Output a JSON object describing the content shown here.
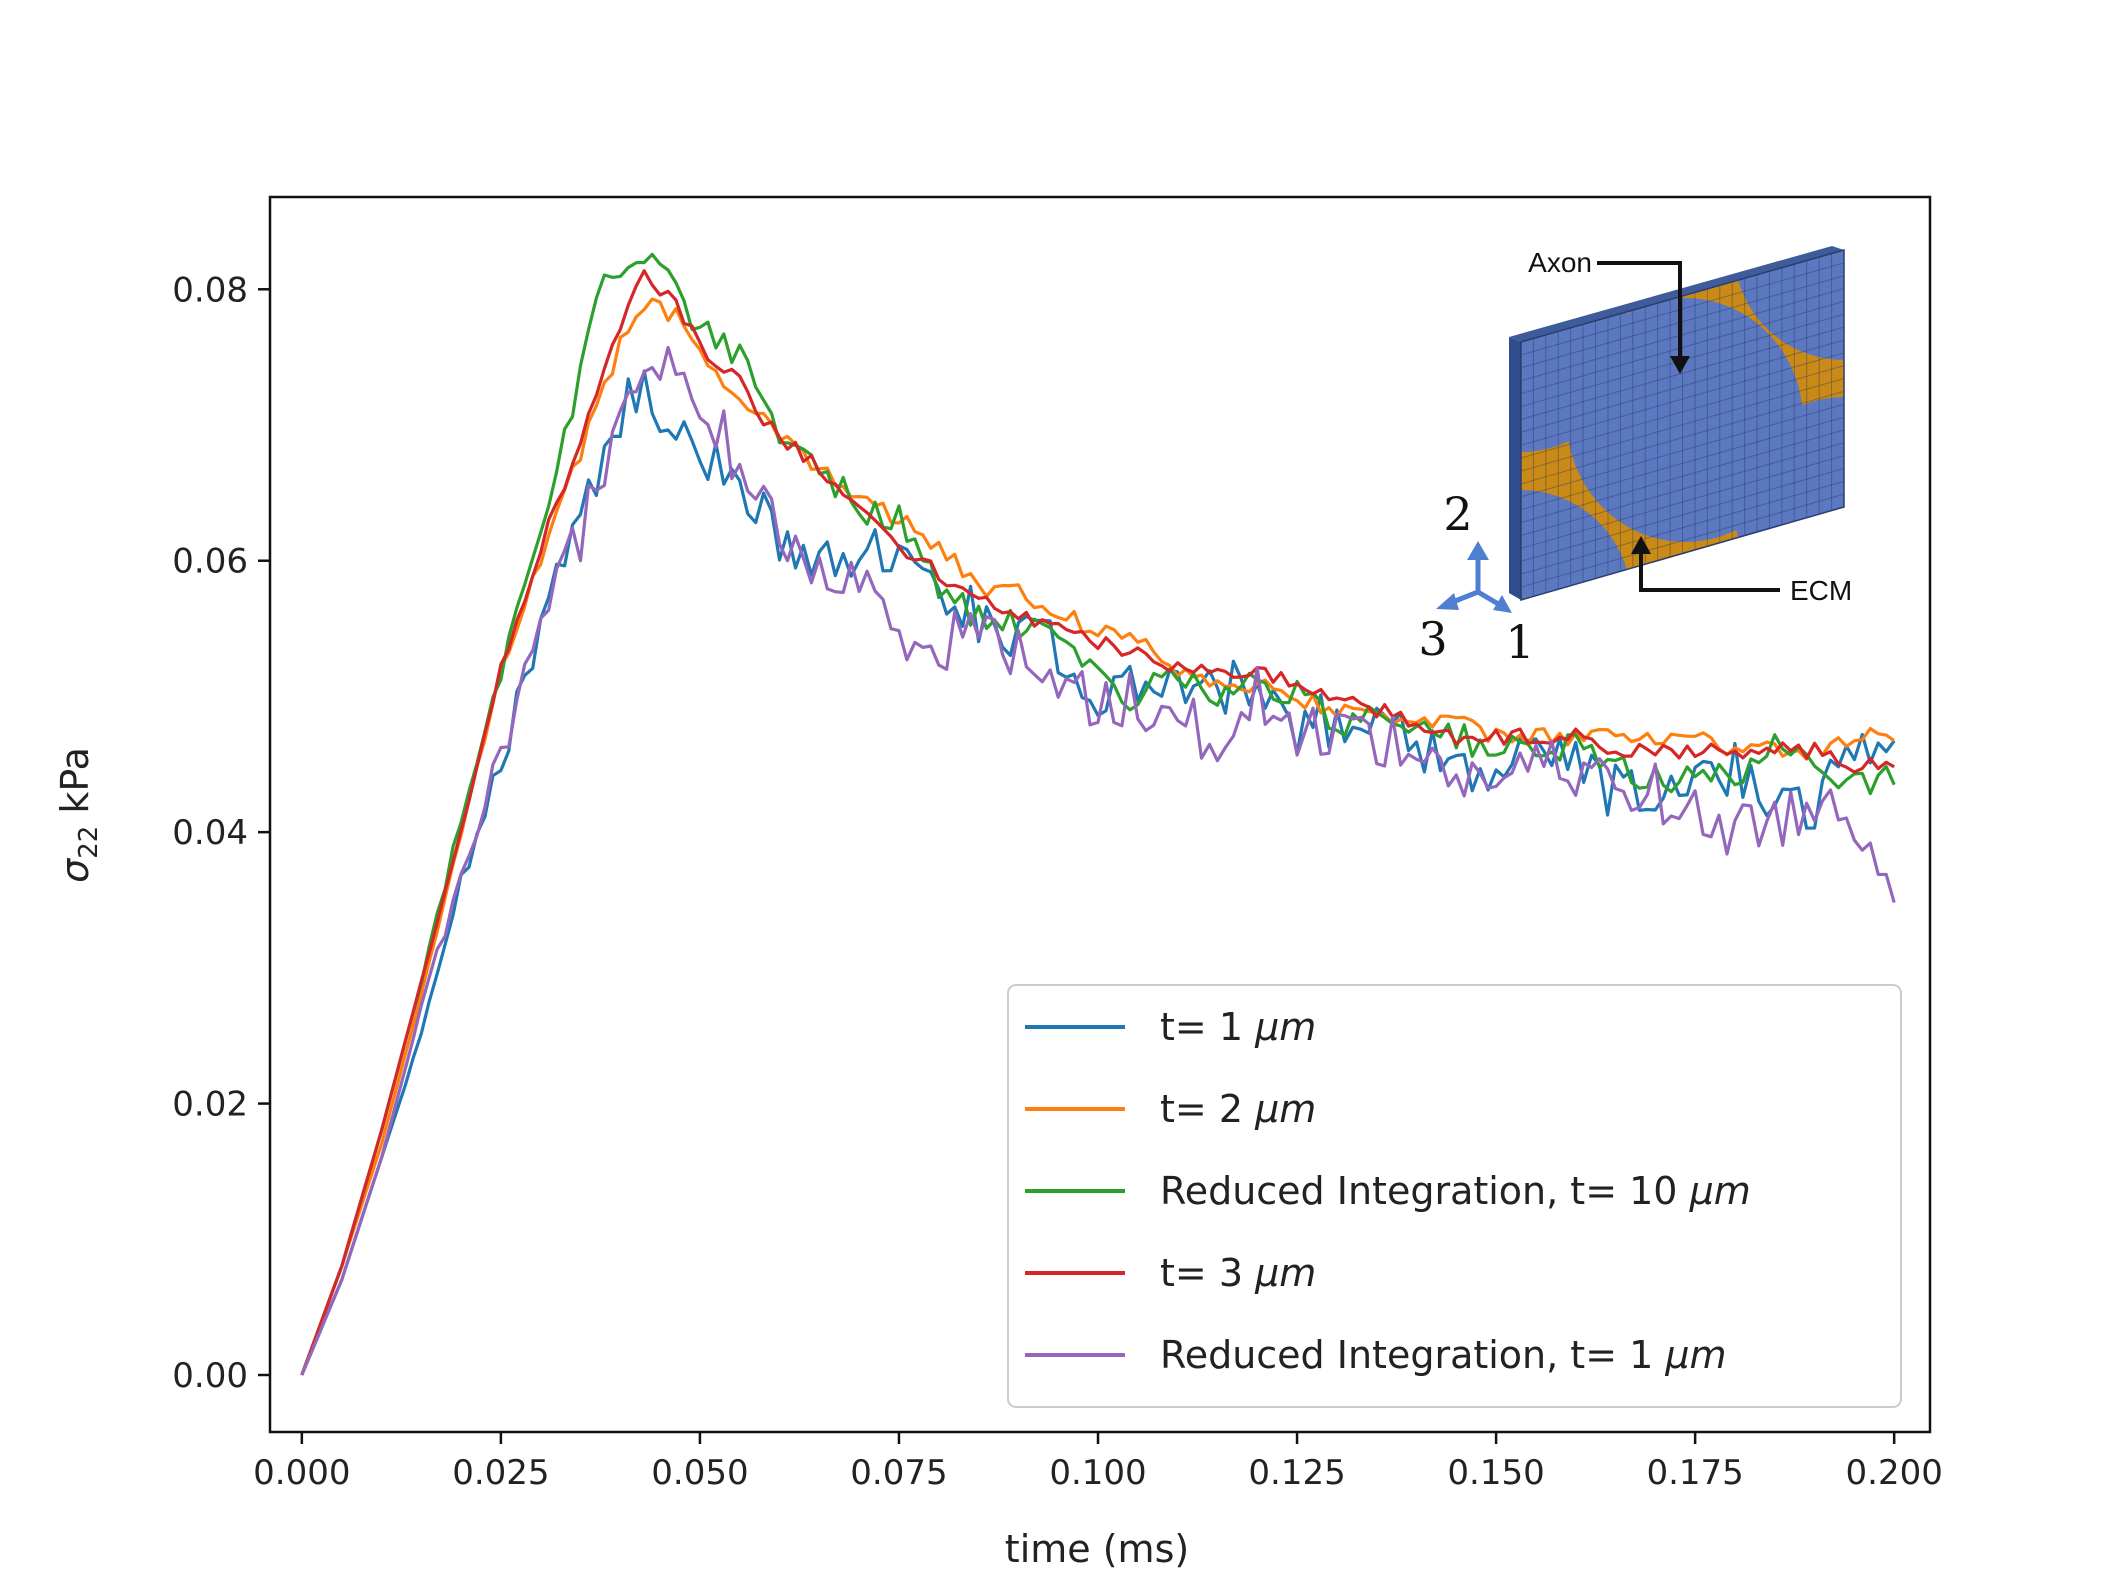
{
  "chart_data": {
    "type": "line",
    "title": "",
    "xlabel": "time (ms)",
    "ylabel_main": "σ",
    "ylabel_sub": "22",
    "ylabel_rest": " kPa",
    "xlim": [
      -0.004,
      0.2045
    ],
    "ylim": [
      -0.0042,
      0.0868
    ],
    "xticks": [
      0.0,
      0.025,
      0.05,
      0.075,
      0.1,
      0.125,
      0.15,
      0.175,
      0.2
    ],
    "xtick_labels": [
      "0.000",
      "0.025",
      "0.050",
      "0.075",
      "0.100",
      "0.125",
      "0.150",
      "0.175",
      "0.200"
    ],
    "yticks": [
      0.0,
      0.02,
      0.04,
      0.06,
      0.08
    ],
    "ytick_labels": [
      "0.00",
      "0.02",
      "0.04",
      "0.06",
      "0.08"
    ],
    "legend_position": "lower-right",
    "series": [
      {
        "name_prefix": "t= 1 ",
        "name_unit": "μm",
        "color": "#1f77b4",
        "anchors": [
          [
            0,
            0
          ],
          [
            0.005,
            0.007
          ],
          [
            0.01,
            0.016
          ],
          [
            0.015,
            0.025
          ],
          [
            0.02,
            0.036
          ],
          [
            0.025,
            0.045
          ],
          [
            0.03,
            0.056
          ],
          [
            0.035,
            0.064
          ],
          [
            0.04,
            0.071
          ],
          [
            0.043,
            0.072
          ],
          [
            0.047,
            0.069
          ],
          [
            0.05,
            0.068
          ],
          [
            0.055,
            0.066
          ],
          [
            0.06,
            0.062
          ],
          [
            0.065,
            0.059
          ],
          [
            0.07,
            0.061
          ],
          [
            0.075,
            0.061
          ],
          [
            0.08,
            0.057
          ],
          [
            0.085,
            0.056
          ],
          [
            0.09,
            0.055
          ],
          [
            0.095,
            0.053
          ],
          [
            0.1,
            0.049
          ],
          [
            0.105,
            0.051
          ],
          [
            0.11,
            0.052
          ],
          [
            0.115,
            0.05
          ],
          [
            0.12,
            0.051
          ],
          [
            0.125,
            0.048
          ],
          [
            0.13,
            0.048
          ],
          [
            0.135,
            0.049
          ],
          [
            0.14,
            0.047
          ],
          [
            0.145,
            0.045
          ],
          [
            0.15,
            0.044
          ],
          [
            0.155,
            0.046
          ],
          [
            0.16,
            0.045
          ],
          [
            0.165,
            0.043
          ],
          [
            0.17,
            0.042
          ],
          [
            0.175,
            0.043
          ],
          [
            0.18,
            0.045
          ],
          [
            0.185,
            0.043
          ],
          [
            0.19,
            0.042
          ],
          [
            0.195,
            0.046
          ],
          [
            0.2,
            0.046
          ]
        ],
        "noise": 0.0022
      },
      {
        "name_prefix": "t= 2 ",
        "name_unit": "μm",
        "color": "#ff7f0e",
        "anchors": [
          [
            0,
            0
          ],
          [
            0.005,
            0.008
          ],
          [
            0.01,
            0.017
          ],
          [
            0.015,
            0.028
          ],
          [
            0.02,
            0.04
          ],
          [
            0.025,
            0.052
          ],
          [
            0.03,
            0.06
          ],
          [
            0.035,
            0.068
          ],
          [
            0.04,
            0.076
          ],
          [
            0.043,
            0.079
          ],
          [
            0.047,
            0.078
          ],
          [
            0.05,
            0.075
          ],
          [
            0.055,
            0.072
          ],
          [
            0.06,
            0.069
          ],
          [
            0.065,
            0.067
          ],
          [
            0.07,
            0.065
          ],
          [
            0.075,
            0.063
          ],
          [
            0.08,
            0.061
          ],
          [
            0.085,
            0.058
          ],
          [
            0.09,
            0.058
          ],
          [
            0.095,
            0.056
          ],
          [
            0.1,
            0.055
          ],
          [
            0.105,
            0.054
          ],
          [
            0.11,
            0.052
          ],
          [
            0.115,
            0.051
          ],
          [
            0.12,
            0.051
          ],
          [
            0.125,
            0.05
          ],
          [
            0.13,
            0.049
          ],
          [
            0.135,
            0.049
          ],
          [
            0.14,
            0.048
          ],
          [
            0.145,
            0.048
          ],
          [
            0.15,
            0.047
          ],
          [
            0.155,
            0.047
          ],
          [
            0.16,
            0.047
          ],
          [
            0.165,
            0.047
          ],
          [
            0.17,
            0.047
          ],
          [
            0.175,
            0.047
          ],
          [
            0.18,
            0.046
          ],
          [
            0.185,
            0.046
          ],
          [
            0.19,
            0.046
          ],
          [
            0.195,
            0.047
          ],
          [
            0.2,
            0.047
          ]
        ],
        "noise": 0.0007
      },
      {
        "name_prefix": "Reduced Integration, t= 10 ",
        "name_unit": "μm",
        "color": "#2ca02c",
        "anchors": [
          [
            0,
            0
          ],
          [
            0.005,
            0.008
          ],
          [
            0.01,
            0.018
          ],
          [
            0.015,
            0.029
          ],
          [
            0.02,
            0.041
          ],
          [
            0.025,
            0.052
          ],
          [
            0.03,
            0.062
          ],
          [
            0.035,
            0.074
          ],
          [
            0.038,
            0.081
          ],
          [
            0.04,
            0.081
          ],
          [
            0.043,
            0.083
          ],
          [
            0.047,
            0.08
          ],
          [
            0.05,
            0.077
          ],
          [
            0.055,
            0.075
          ],
          [
            0.06,
            0.069
          ],
          [
            0.065,
            0.067
          ],
          [
            0.07,
            0.064
          ],
          [
            0.075,
            0.063
          ],
          [
            0.08,
            0.058
          ],
          [
            0.085,
            0.056
          ],
          [
            0.09,
            0.055
          ],
          [
            0.095,
            0.054
          ],
          [
            0.1,
            0.051
          ],
          [
            0.105,
            0.05
          ],
          [
            0.11,
            0.052
          ],
          [
            0.115,
            0.05
          ],
          [
            0.12,
            0.051
          ],
          [
            0.125,
            0.05
          ],
          [
            0.13,
            0.048
          ],
          [
            0.135,
            0.049
          ],
          [
            0.14,
            0.048
          ],
          [
            0.145,
            0.047
          ],
          [
            0.15,
            0.046
          ],
          [
            0.155,
            0.046
          ],
          [
            0.16,
            0.046
          ],
          [
            0.165,
            0.045
          ],
          [
            0.17,
            0.044
          ],
          [
            0.175,
            0.044
          ],
          [
            0.18,
            0.044
          ],
          [
            0.185,
            0.046
          ],
          [
            0.19,
            0.045
          ],
          [
            0.195,
            0.044
          ],
          [
            0.2,
            0.044
          ]
        ],
        "noise": 0.0012
      },
      {
        "name_prefix": "t= 3 ",
        "name_unit": "μm",
        "color": "#d62728",
        "anchors": [
          [
            0,
            0
          ],
          [
            0.005,
            0.008
          ],
          [
            0.01,
            0.018
          ],
          [
            0.015,
            0.029
          ],
          [
            0.02,
            0.04
          ],
          [
            0.025,
            0.052
          ],
          [
            0.03,
            0.061
          ],
          [
            0.035,
            0.069
          ],
          [
            0.04,
            0.077
          ],
          [
            0.043,
            0.081
          ],
          [
            0.047,
            0.079
          ],
          [
            0.05,
            0.076
          ],
          [
            0.055,
            0.073
          ],
          [
            0.06,
            0.069
          ],
          [
            0.065,
            0.067
          ],
          [
            0.07,
            0.064
          ],
          [
            0.075,
            0.061
          ],
          [
            0.08,
            0.059
          ],
          [
            0.085,
            0.057
          ],
          [
            0.09,
            0.056
          ],
          [
            0.095,
            0.055
          ],
          [
            0.1,
            0.054
          ],
          [
            0.105,
            0.053
          ],
          [
            0.11,
            0.052
          ],
          [
            0.115,
            0.052
          ],
          [
            0.12,
            0.052
          ],
          [
            0.125,
            0.051
          ],
          [
            0.13,
            0.05
          ],
          [
            0.135,
            0.049
          ],
          [
            0.14,
            0.048
          ],
          [
            0.145,
            0.047
          ],
          [
            0.15,
            0.047
          ],
          [
            0.155,
            0.047
          ],
          [
            0.16,
            0.047
          ],
          [
            0.165,
            0.046
          ],
          [
            0.17,
            0.046
          ],
          [
            0.175,
            0.046
          ],
          [
            0.18,
            0.046
          ],
          [
            0.185,
            0.046
          ],
          [
            0.19,
            0.046
          ],
          [
            0.195,
            0.045
          ],
          [
            0.2,
            0.045
          ]
        ],
        "noise": 0.0006
      },
      {
        "name_prefix": "Reduced Integration, t= 1 ",
        "name_unit": "μm",
        "color": "#9467bd",
        "anchors": [
          [
            0,
            0
          ],
          [
            0.005,
            0.007
          ],
          [
            0.01,
            0.016
          ],
          [
            0.015,
            0.027
          ],
          [
            0.02,
            0.037
          ],
          [
            0.025,
            0.046
          ],
          [
            0.03,
            0.054
          ],
          [
            0.035,
            0.062
          ],
          [
            0.04,
            0.071
          ],
          [
            0.043,
            0.073
          ],
          [
            0.047,
            0.075
          ],
          [
            0.05,
            0.072
          ],
          [
            0.055,
            0.067
          ],
          [
            0.06,
            0.062
          ],
          [
            0.065,
            0.059
          ],
          [
            0.07,
            0.058
          ],
          [
            0.075,
            0.055
          ],
          [
            0.08,
            0.054
          ],
          [
            0.085,
            0.055
          ],
          [
            0.09,
            0.053
          ],
          [
            0.095,
            0.052
          ],
          [
            0.1,
            0.049
          ],
          [
            0.105,
            0.05
          ],
          [
            0.11,
            0.048
          ],
          [
            0.115,
            0.047
          ],
          [
            0.12,
            0.05
          ],
          [
            0.125,
            0.047
          ],
          [
            0.13,
            0.048
          ],
          [
            0.135,
            0.047
          ],
          [
            0.14,
            0.046
          ],
          [
            0.145,
            0.044
          ],
          [
            0.15,
            0.044
          ],
          [
            0.155,
            0.045
          ],
          [
            0.16,
            0.044
          ],
          [
            0.165,
            0.044
          ],
          [
            0.17,
            0.043
          ],
          [
            0.175,
            0.041
          ],
          [
            0.18,
            0.04
          ],
          [
            0.185,
            0.041
          ],
          [
            0.19,
            0.042
          ],
          [
            0.195,
            0.041
          ],
          [
            0.2,
            0.037
          ]
        ],
        "noise": 0.0022
      }
    ]
  },
  "inset": {
    "axon_label": "Axon",
    "ecm_label": "ECM",
    "axis_1": "1",
    "axis_2": "2",
    "axis_3": "3",
    "axon_color": "#5b78c0",
    "ecm_color": "#c98a17",
    "triad_color": "#4f7fd0"
  }
}
